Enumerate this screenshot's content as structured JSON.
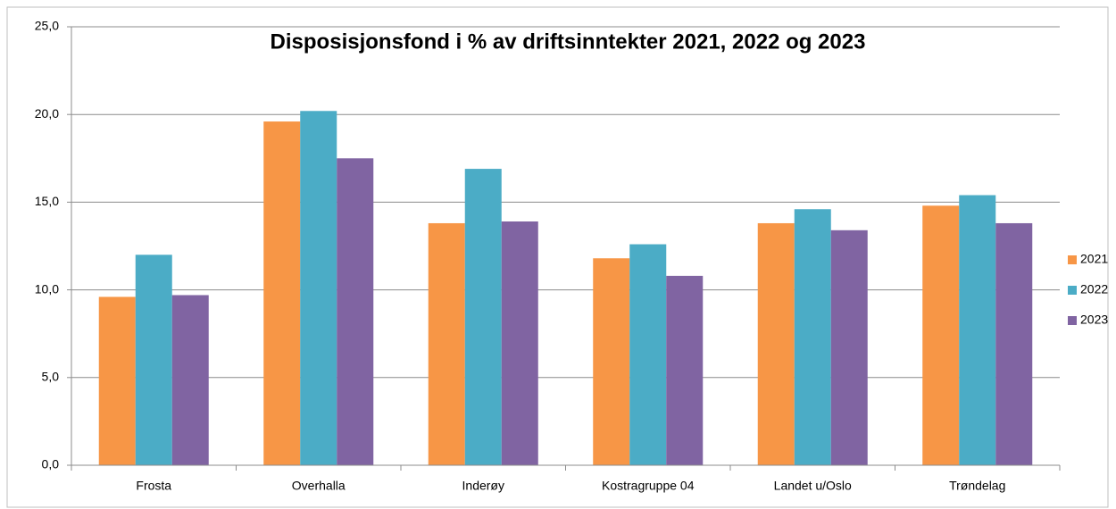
{
  "chart_data": {
    "type": "bar",
    "title": "Disposisjonsfond i % av driftsinntekter 2021, 2022 og 2023",
    "categories": [
      "Frosta",
      "Overhalla",
      "Inderøy",
      "Kostragruppe 04",
      "Landet u/Oslo",
      "Trøndelag"
    ],
    "series": [
      {
        "name": "2021",
        "color": "#f79646",
        "values": [
          9.6,
          19.6,
          13.8,
          11.8,
          13.8,
          14.8
        ]
      },
      {
        "name": "2022",
        "color": "#4bacc6",
        "values": [
          12.0,
          20.2,
          16.9,
          12.6,
          14.6,
          15.4
        ]
      },
      {
        "name": "2023",
        "color": "#8064a2",
        "values": [
          9.7,
          17.5,
          13.9,
          10.8,
          13.4,
          13.8
        ]
      }
    ],
    "ylim": [
      0,
      25
    ],
    "yticks": [
      {
        "value": 0,
        "label": "0,0"
      },
      {
        "value": 5,
        "label": "5,0"
      },
      {
        "value": 10,
        "label": "10,0"
      },
      {
        "value": 15,
        "label": "15,0"
      },
      {
        "value": 20,
        "label": "20,0"
      },
      {
        "value": 25,
        "label": "25,0"
      }
    ],
    "grid": true,
    "legend": "right"
  }
}
